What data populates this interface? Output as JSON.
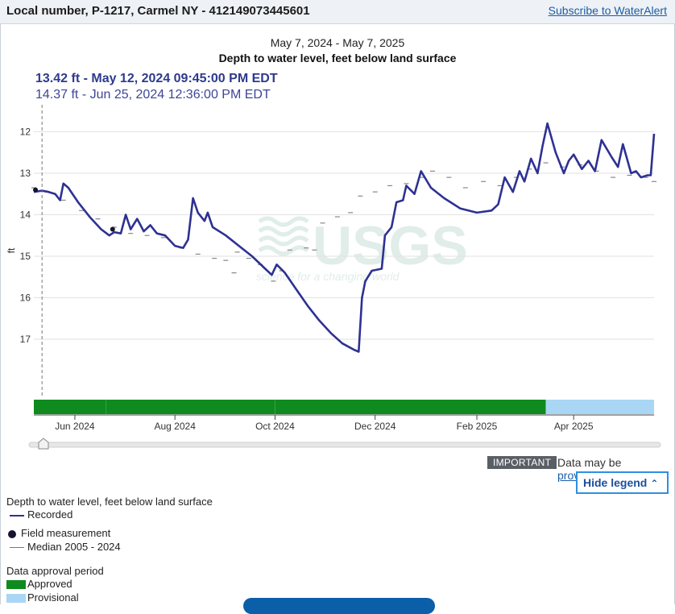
{
  "header": {
    "title": "Local number, P-1217, Carmel NY - 412149073445601",
    "subscribe_link": "Subscribe to WaterAlert"
  },
  "chart_header": {
    "period": "May 7, 2024 - May 7, 2025",
    "title": "Depth to water level, feet below land surface"
  },
  "tooltip": {
    "primary": "13.42 ft - May 12, 2024 09:45:00 PM EDT",
    "secondary": "14.37 ft - Jun 25, 2024 12:36:00 PM EDT"
  },
  "watermark": {
    "logo": "USGS",
    "tagline": "science for a changing world"
  },
  "notice": {
    "badge": "IMPORTANT",
    "text": "Data may be ",
    "link": "provisional"
  },
  "legend_toggle": {
    "label": "Hide legend",
    "icon": "chevron-up-icon"
  },
  "legend": {
    "series_heading": "Depth to water level, feet below land surface",
    "recorded": "Recorded",
    "field": "Field measurement",
    "median": "Median 2005 - 2024",
    "approval_heading": "Data approval period",
    "approved": "Approved",
    "provisional": "Provisional"
  },
  "colors": {
    "recorded": "#2e3192",
    "median": "#888888",
    "approved": "#0f8a1e",
    "provisional": "#a9d6f5",
    "grid": "#e2e2e2"
  },
  "chart_data": {
    "type": "line",
    "title": "Depth to water level, feet below land surface",
    "subtitle": "May 7, 2024 - May 7, 2025",
    "xlabel": "",
    "ylabel": "ft",
    "y_inverted": true,
    "ylim": [
      18.3,
      11.7
    ],
    "xlim": [
      "2024-05-07",
      "2025-05-07"
    ],
    "yticks": [
      12,
      13,
      14,
      15,
      16,
      17
    ],
    "xticks": [
      {
        "date": "2024-06-01",
        "label": "Jun 2024"
      },
      {
        "date": "2024-08-01",
        "label": "Aug 2024"
      },
      {
        "date": "2024-10-01",
        "label": "Oct 2024"
      },
      {
        "date": "2024-12-01",
        "label": "Dec 2024"
      },
      {
        "date": "2025-02-01",
        "label": "Feb 2025"
      },
      {
        "date": "2025-04-01",
        "label": "Apr 2025"
      }
    ],
    "grid": true,
    "cursor_date": "2024-05-12",
    "series": [
      {
        "name": "Recorded",
        "points": [
          [
            "2024-05-07",
            13.45
          ],
          [
            "2024-05-12",
            13.42
          ],
          [
            "2024-05-16",
            13.45
          ],
          [
            "2024-05-20",
            13.5
          ],
          [
            "2024-05-23",
            13.65
          ],
          [
            "2024-05-25",
            13.25
          ],
          [
            "2024-05-28",
            13.35
          ],
          [
            "2024-06-03",
            13.7
          ],
          [
            "2024-06-10",
            14.05
          ],
          [
            "2024-06-17",
            14.35
          ],
          [
            "2024-06-22",
            14.5
          ],
          [
            "2024-06-25",
            14.42
          ],
          [
            "2024-06-29",
            14.45
          ],
          [
            "2024-07-02",
            14.0
          ],
          [
            "2024-07-05",
            14.35
          ],
          [
            "2024-07-09",
            14.1
          ],
          [
            "2024-07-13",
            14.4
          ],
          [
            "2024-07-17",
            14.25
          ],
          [
            "2024-07-21",
            14.45
          ],
          [
            "2024-07-26",
            14.5
          ],
          [
            "2024-08-01",
            14.75
          ],
          [
            "2024-08-06",
            14.8
          ],
          [
            "2024-08-09",
            14.6
          ],
          [
            "2024-08-12",
            13.6
          ],
          [
            "2024-08-15",
            13.95
          ],
          [
            "2024-08-19",
            14.15
          ],
          [
            "2024-08-21",
            13.95
          ],
          [
            "2024-08-24",
            14.3
          ],
          [
            "2024-09-01",
            14.5
          ],
          [
            "2024-09-09",
            14.75
          ],
          [
            "2024-09-17",
            15.0
          ],
          [
            "2024-09-25",
            15.3
          ],
          [
            "2024-09-29",
            15.45
          ],
          [
            "2024-10-02",
            15.2
          ],
          [
            "2024-10-07",
            15.4
          ],
          [
            "2024-10-14",
            15.8
          ],
          [
            "2024-10-21",
            16.2
          ],
          [
            "2024-10-28",
            16.55
          ],
          [
            "2024-11-04",
            16.85
          ],
          [
            "2024-11-11",
            17.1
          ],
          [
            "2024-11-18",
            17.25
          ],
          [
            "2024-11-21",
            17.3
          ],
          [
            "2024-11-23",
            16.0
          ],
          [
            "2024-11-25",
            15.6
          ],
          [
            "2024-11-29",
            15.35
          ],
          [
            "2024-12-05",
            15.3
          ],
          [
            "2024-12-07",
            14.5
          ],
          [
            "2024-12-11",
            14.3
          ],
          [
            "2024-12-14",
            13.7
          ],
          [
            "2024-12-18",
            13.65
          ],
          [
            "2024-12-20",
            13.3
          ],
          [
            "2024-12-25",
            13.5
          ],
          [
            "2024-12-29",
            12.95
          ],
          [
            "2025-01-04",
            13.35
          ],
          [
            "2025-01-12",
            13.6
          ],
          [
            "2025-01-22",
            13.85
          ],
          [
            "2025-02-01",
            13.95
          ],
          [
            "2025-02-10",
            13.9
          ],
          [
            "2025-02-14",
            13.75
          ],
          [
            "2025-02-18",
            13.1
          ],
          [
            "2025-02-23",
            13.45
          ],
          [
            "2025-02-27",
            12.95
          ],
          [
            "2025-03-02",
            13.2
          ],
          [
            "2025-03-06",
            12.65
          ],
          [
            "2025-03-10",
            13.0
          ],
          [
            "2025-03-13",
            12.35
          ],
          [
            "2025-03-16",
            11.8
          ],
          [
            "2025-03-21",
            12.5
          ],
          [
            "2025-03-26",
            13.0
          ],
          [
            "2025-03-29",
            12.7
          ],
          [
            "2025-04-01",
            12.55
          ],
          [
            "2025-04-06",
            12.9
          ],
          [
            "2025-04-10",
            12.7
          ],
          [
            "2025-04-14",
            12.95
          ],
          [
            "2025-04-18",
            12.2
          ],
          [
            "2025-04-24",
            12.6
          ],
          [
            "2025-04-28",
            12.85
          ],
          [
            "2025-05-01",
            12.3
          ],
          [
            "2025-05-06",
            13.0
          ],
          [
            "2025-05-09",
            12.95
          ],
          [
            "2025-05-12",
            13.1
          ],
          [
            "2025-05-16",
            13.05
          ],
          [
            "2025-05-18",
            13.05
          ],
          [
            "2025-05-20",
            12.05
          ]
        ]
      },
      {
        "name": "Median 2005 - 2024",
        "points": [
          [
            "2024-05-07",
            13.35
          ],
          [
            "2024-05-15",
            13.45
          ],
          [
            "2024-05-25",
            13.65
          ],
          [
            "2024-06-05",
            13.9
          ],
          [
            "2024-06-15",
            14.1
          ],
          [
            "2024-06-25",
            14.3
          ],
          [
            "2024-07-05",
            14.45
          ],
          [
            "2024-07-15",
            14.5
          ],
          [
            "2024-07-25",
            14.55
          ],
          [
            "2024-08-05",
            14.8
          ],
          [
            "2024-08-15",
            14.95
          ],
          [
            "2024-08-25",
            15.05
          ],
          [
            "2024-09-01",
            15.1
          ],
          [
            "2024-09-06",
            15.4
          ],
          [
            "2024-09-08",
            14.9
          ],
          [
            "2024-09-15",
            15.05
          ],
          [
            "2024-09-22",
            15.2
          ],
          [
            "2024-09-30",
            15.6
          ],
          [
            "2024-10-05",
            15.35
          ],
          [
            "2024-10-10",
            14.85
          ],
          [
            "2024-10-20",
            14.8
          ],
          [
            "2024-10-25",
            14.85
          ],
          [
            "2024-10-30",
            14.2
          ],
          [
            "2024-11-08",
            14.05
          ],
          [
            "2024-11-16",
            13.95
          ],
          [
            "2024-11-22",
            13.55
          ],
          [
            "2024-12-01",
            13.45
          ],
          [
            "2024-12-10",
            13.3
          ],
          [
            "2024-12-20",
            13.25
          ],
          [
            "2024-12-30",
            13.1
          ],
          [
            "2025-01-05",
            12.95
          ],
          [
            "2025-01-15",
            13.1
          ],
          [
            "2025-01-25",
            13.35
          ],
          [
            "2025-02-05",
            13.2
          ],
          [
            "2025-02-15",
            13.3
          ],
          [
            "2025-02-25",
            13.1
          ],
          [
            "2025-03-05",
            12.9
          ],
          [
            "2025-03-15",
            12.75
          ],
          [
            "2025-03-25",
            12.85
          ],
          [
            "2025-04-05",
            12.8
          ],
          [
            "2025-04-15",
            12.95
          ],
          [
            "2025-04-25",
            13.1
          ],
          [
            "2025-05-05",
            13.05
          ],
          [
            "2025-05-15",
            13.1
          ],
          [
            "2025-05-20",
            13.2
          ]
        ]
      },
      {
        "name": "Field measurement",
        "points": [
          [
            "2024-05-08",
            13.4
          ],
          [
            "2024-06-24",
            14.35
          ]
        ]
      }
    ],
    "approval_periods": [
      {
        "status": "Approved",
        "start": "2024-05-07",
        "end": "2025-03-15"
      },
      {
        "status": "Provisional",
        "start": "2025-03-15",
        "end": "2025-05-20"
      }
    ],
    "approval_dividers": [
      "2024-06-20",
      "2024-10-01"
    ]
  }
}
